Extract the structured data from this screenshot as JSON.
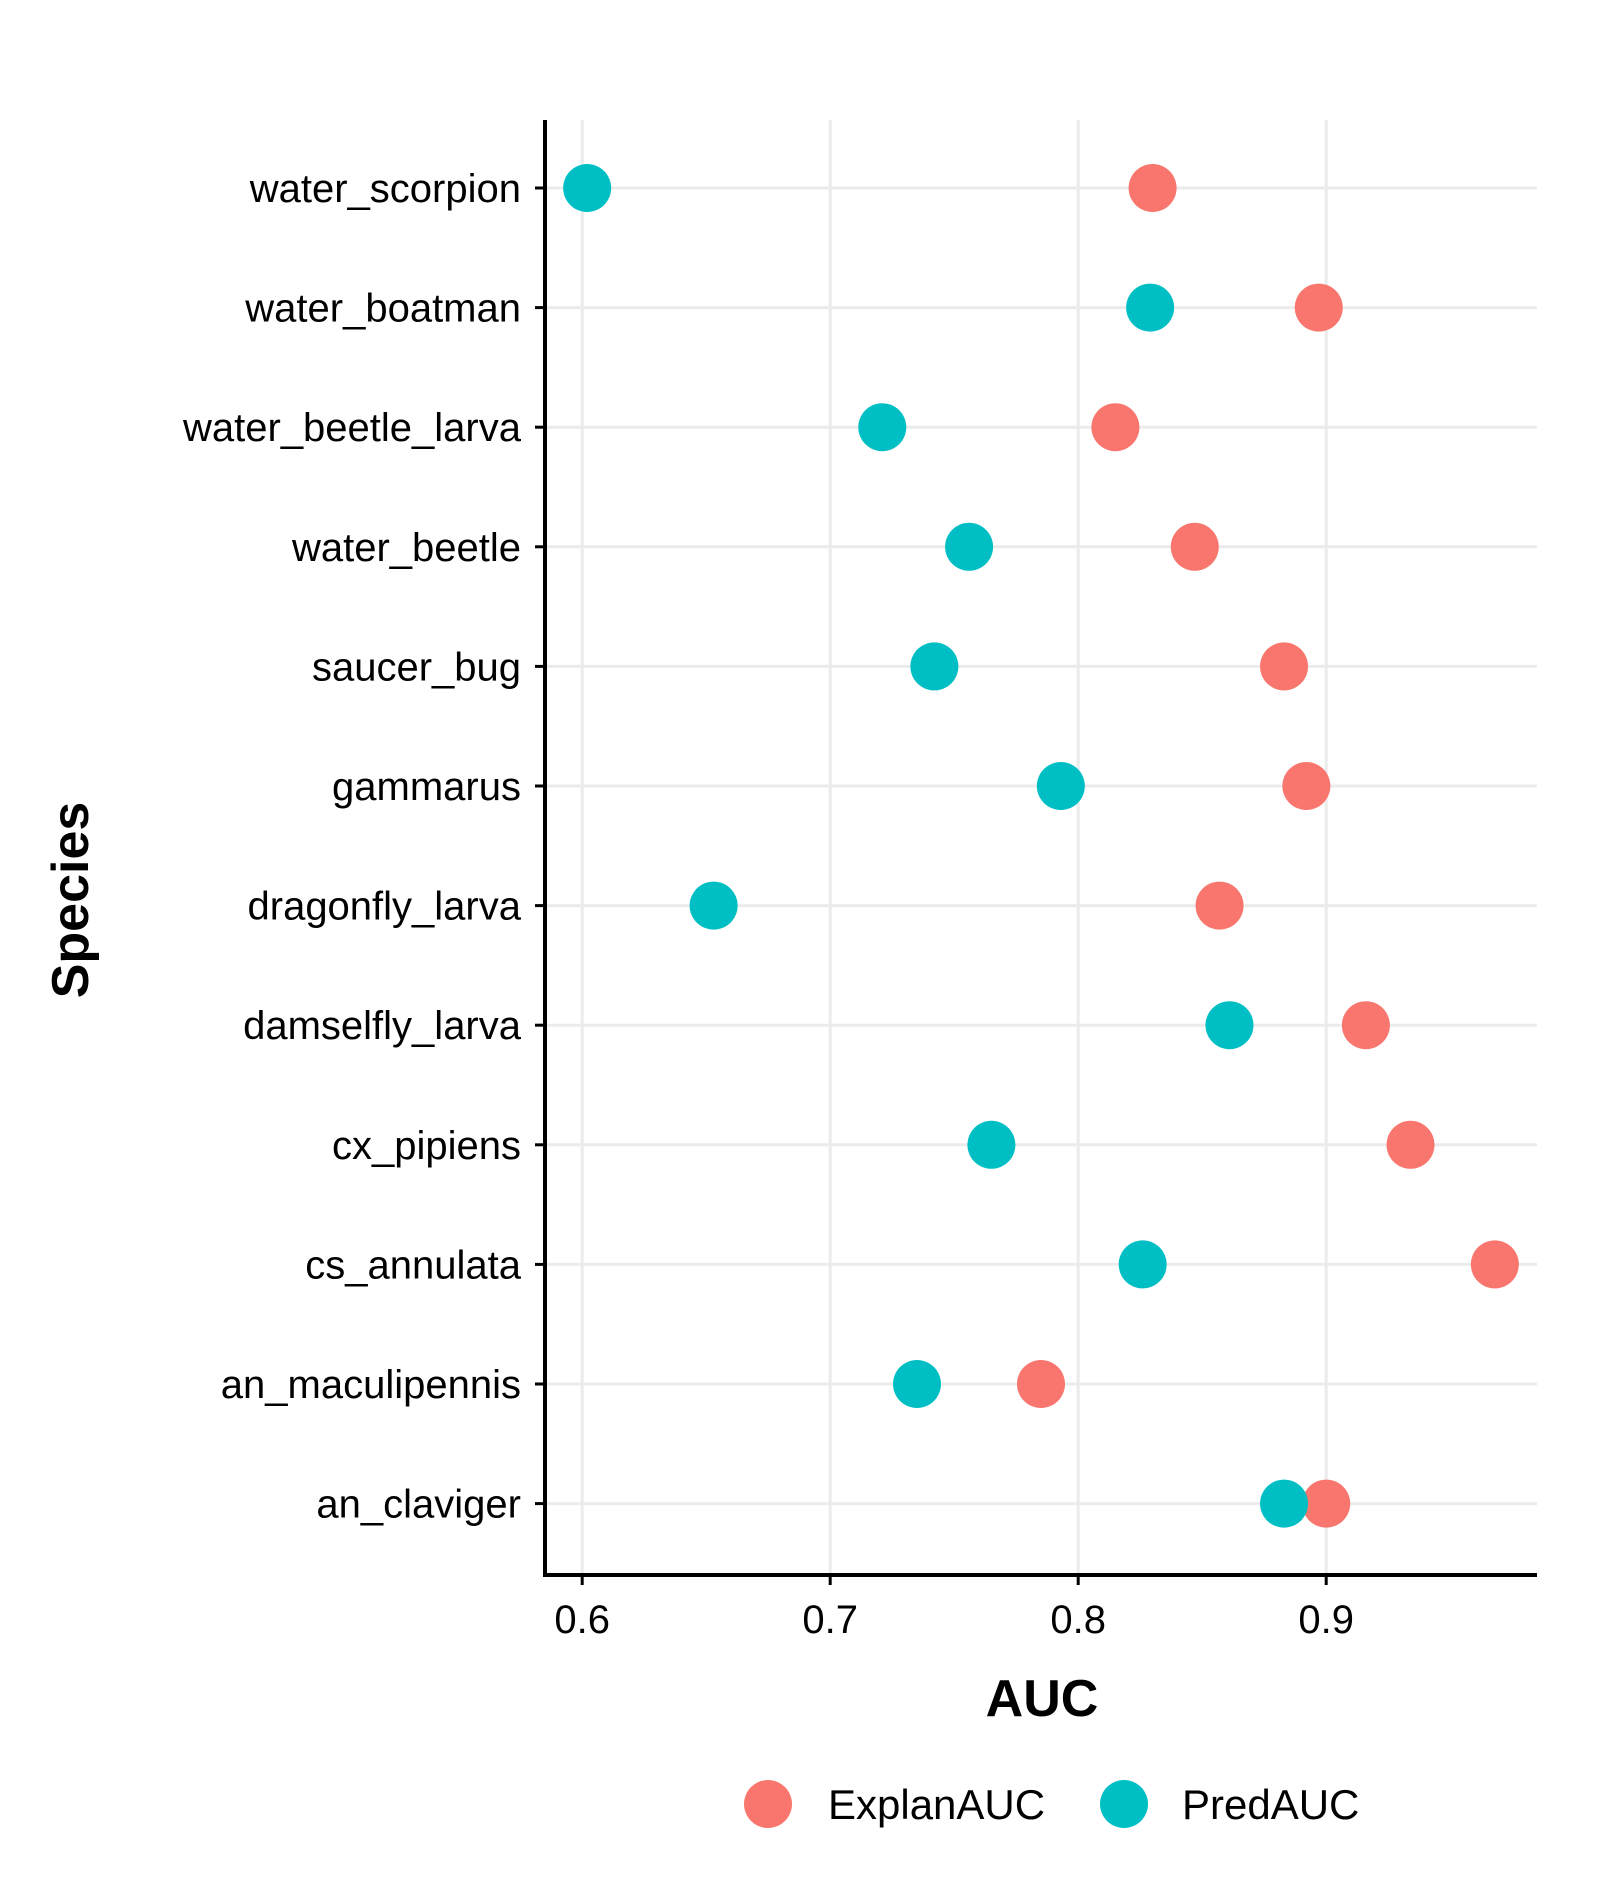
{
  "chart_data": {
    "type": "scatter",
    "xlabel": "AUC",
    "ylabel": "Species",
    "xlim": [
      0.585,
      0.985
    ],
    "xticks": [
      "0.6",
      "0.7",
      "0.8",
      "0.9"
    ],
    "grid": true,
    "legend_position": "bottom",
    "categories": [
      "water_scorpion",
      "water_boatman",
      "water_beetle_larva",
      "water_beetle",
      "saucer_bug",
      "gammarus",
      "dragonfly_larva",
      "damselfly_larva",
      "cx_pipiens",
      "cs_annulata",
      "an_maculipennis",
      "an_claviger"
    ],
    "series": [
      {
        "name": "ExplanAUC",
        "color": "#F8766D",
        "values": [
          0.83,
          0.897,
          0.815,
          0.847,
          0.883,
          0.892,
          0.857,
          0.916,
          0.934,
          0.968,
          0.785,
          0.9
        ]
      },
      {
        "name": "PredAUC",
        "color": "#00BFC4",
        "values": [
          0.602,
          0.829,
          0.721,
          0.756,
          0.742,
          0.793,
          0.653,
          0.861,
          0.765,
          0.826,
          0.735,
          0.883
        ]
      }
    ]
  }
}
